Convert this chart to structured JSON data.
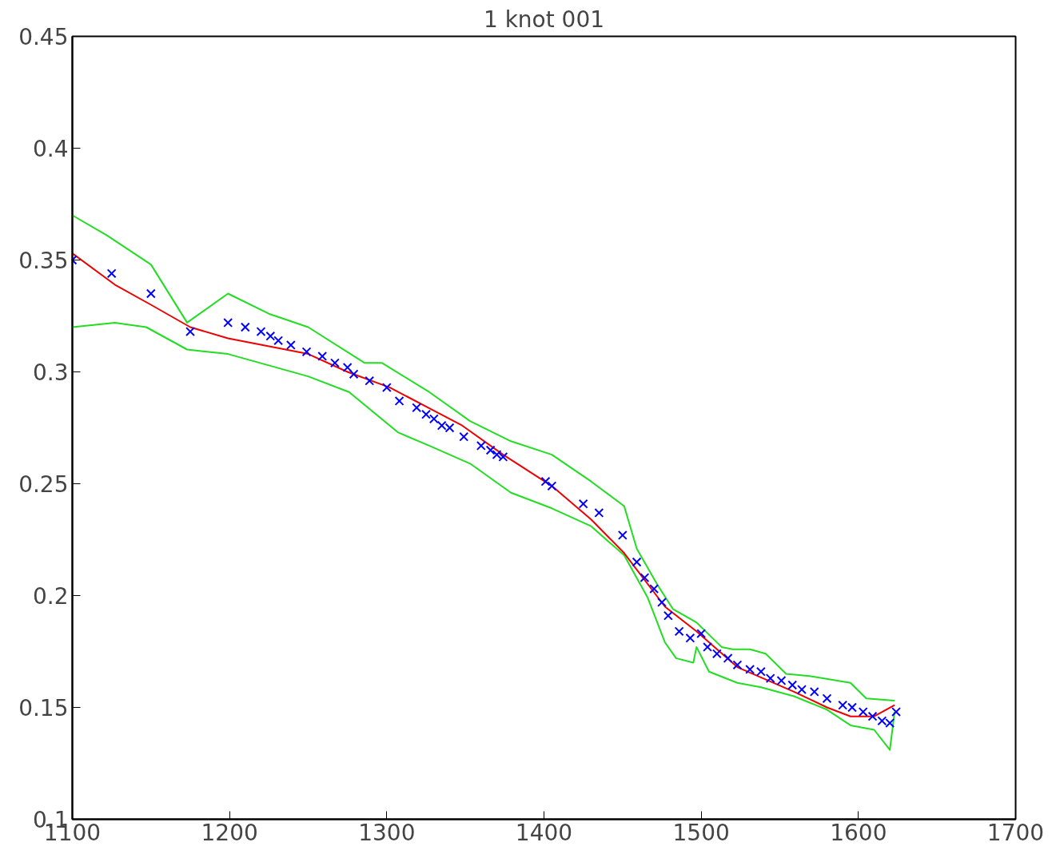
{
  "chart_data": {
    "type": "scatter",
    "title": "1 knot 001",
    "xlim": [
      1100,
      1700
    ],
    "ylim": [
      0.1,
      0.45
    ],
    "xticks": [
      1100,
      1200,
      1300,
      1400,
      1500,
      1600,
      1700
    ],
    "yticks": [
      0.1,
      0.15,
      0.2,
      0.25,
      0.3,
      0.35,
      0.4,
      0.45
    ],
    "grid": false,
    "series": [
      {
        "type": "line",
        "color": "#22dd22",
        "line_style": "solid",
        "marker": "none",
        "x": [
          1100,
          1122,
          1150,
          1173,
          1199,
          1225,
          1250,
          1286,
          1297,
          1327,
          1353,
          1379,
          1405,
          1430,
          1451,
          1459,
          1472,
          1482,
          1497,
          1513,
          1520,
          1531,
          1541,
          1554,
          1569,
          1595,
          1605,
          1623
        ],
        "values": [
          0.37,
          0.361,
          0.348,
          0.322,
          0.335,
          0.326,
          0.32,
          0.304,
          0.304,
          0.291,
          0.278,
          0.269,
          0.263,
          0.251,
          0.24,
          0.221,
          0.205,
          0.194,
          0.188,
          0.177,
          0.176,
          0.176,
          0.174,
          0.165,
          0.164,
          0.161,
          0.154,
          0.153
        ]
      },
      {
        "type": "line",
        "color": "#22dd22",
        "line_style": "solid",
        "marker": "none",
        "x": [
          1100,
          1127,
          1147,
          1173,
          1199,
          1250,
          1276,
          1307,
          1327,
          1353,
          1379,
          1405,
          1430,
          1451,
          1466,
          1477,
          1484,
          1495,
          1497,
          1505,
          1523,
          1538,
          1559,
          1580,
          1595,
          1610,
          1620,
          1623
        ],
        "values": [
          0.32,
          0.322,
          0.32,
          0.31,
          0.308,
          0.298,
          0.291,
          0.273,
          0.267,
          0.259,
          0.246,
          0.239,
          0.231,
          0.218,
          0.199,
          0.179,
          0.172,
          0.17,
          0.177,
          0.166,
          0.161,
          0.159,
          0.155,
          0.149,
          0.142,
          0.14,
          0.131,
          0.148
        ]
      },
      {
        "type": "line",
        "color": "#ee0000",
        "line_style": "solid",
        "marker": "none",
        "x": [
          1100,
          1127,
          1150,
          1175,
          1199,
          1250,
          1275,
          1302,
          1348,
          1374,
          1405,
          1430,
          1451,
          1477,
          1497,
          1523,
          1559,
          1580,
          1595,
          1610,
          1623
        ],
        "values": [
          0.353,
          0.339,
          0.33,
          0.32,
          0.315,
          0.308,
          0.3,
          0.293,
          0.276,
          0.263,
          0.249,
          0.234,
          0.219,
          0.195,
          0.184,
          0.168,
          0.157,
          0.15,
          0.146,
          0.146,
          0.151
        ]
      },
      {
        "type": "scatter",
        "color": "#0000ff",
        "marker": "cross",
        "x": [
          1100,
          1125,
          1150,
          1175,
          1199,
          1210,
          1220,
          1226,
          1231,
          1239,
          1249,
          1259,
          1267,
          1275,
          1279,
          1289,
          1300,
          1308,
          1319,
          1325,
          1330,
          1335,
          1340,
          1349,
          1360,
          1366,
          1370,
          1374,
          1401,
          1405,
          1425,
          1435,
          1450,
          1459,
          1464,
          1470,
          1475,
          1479,
          1486,
          1493,
          1500,
          1504,
          1510,
          1517,
          1523,
          1531,
          1538,
          1544,
          1551,
          1558,
          1564,
          1572,
          1580,
          1590,
          1596,
          1603,
          1609,
          1615,
          1620,
          1624
        ],
        "values": [
          0.35,
          0.344,
          0.335,
          0.318,
          0.322,
          0.32,
          0.318,
          0.316,
          0.314,
          0.312,
          0.309,
          0.307,
          0.304,
          0.302,
          0.299,
          0.296,
          0.293,
          0.287,
          0.284,
          0.281,
          0.279,
          0.276,
          0.275,
          0.271,
          0.267,
          0.265,
          0.263,
          0.262,
          0.251,
          0.249,
          0.241,
          0.237,
          0.227,
          0.215,
          0.208,
          0.203,
          0.197,
          0.191,
          0.184,
          0.181,
          0.183,
          0.177,
          0.174,
          0.172,
          0.169,
          0.167,
          0.166,
          0.163,
          0.162,
          0.16,
          0.158,
          0.157,
          0.154,
          0.151,
          0.15,
          0.148,
          0.146,
          0.144,
          0.143,
          0.148
        ]
      }
    ]
  }
}
